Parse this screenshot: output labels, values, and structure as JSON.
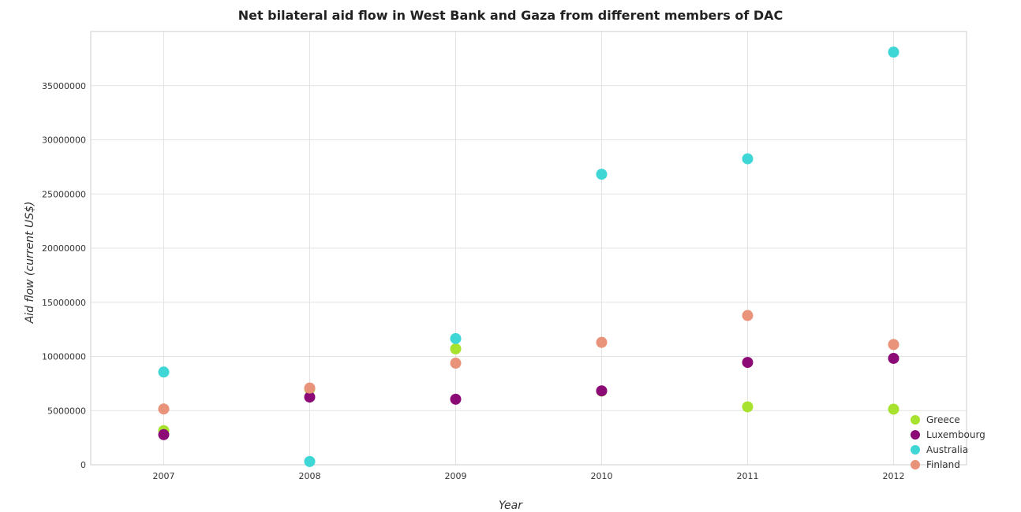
{
  "chart_data": {
    "type": "scatter",
    "title": "Net bilateral aid flow in West Bank and Gaza from different members of DAC",
    "xlabel": "Year",
    "ylabel": "Aid flow (current US$)",
    "categories": [
      "2007",
      "2008",
      "2009",
      "2010",
      "2011",
      "2012"
    ],
    "ylim": [
      0,
      40000000
    ],
    "yticks": [
      0,
      5000000,
      10000000,
      15000000,
      20000000,
      25000000,
      30000000,
      35000000
    ],
    "ytick_labels": [
      "0",
      "5000000",
      "10000000",
      "15000000",
      "20000000",
      "25000000",
      "30000000",
      "35000000"
    ],
    "grid": true,
    "legend_position": "bottom-right",
    "series": [
      {
        "name": "Greece",
        "color": "#a6e22e",
        "values": [
          3150000,
          7000000,
          10700000,
          6800000,
          5350000,
          5130000
        ]
      },
      {
        "name": "Luxembourg",
        "color": "#8b0a76",
        "values": [
          2780000,
          6250000,
          6050000,
          6820000,
          9450000,
          9820000
        ]
      },
      {
        "name": "Australia",
        "color": "#3fd6d6",
        "values": [
          8560000,
          300000,
          11650000,
          26820000,
          28250000,
          38100000
        ]
      },
      {
        "name": "Finland",
        "color": "#e8937a",
        "values": [
          5150000,
          7080000,
          9380000,
          11300000,
          13780000,
          11100000
        ]
      }
    ]
  }
}
